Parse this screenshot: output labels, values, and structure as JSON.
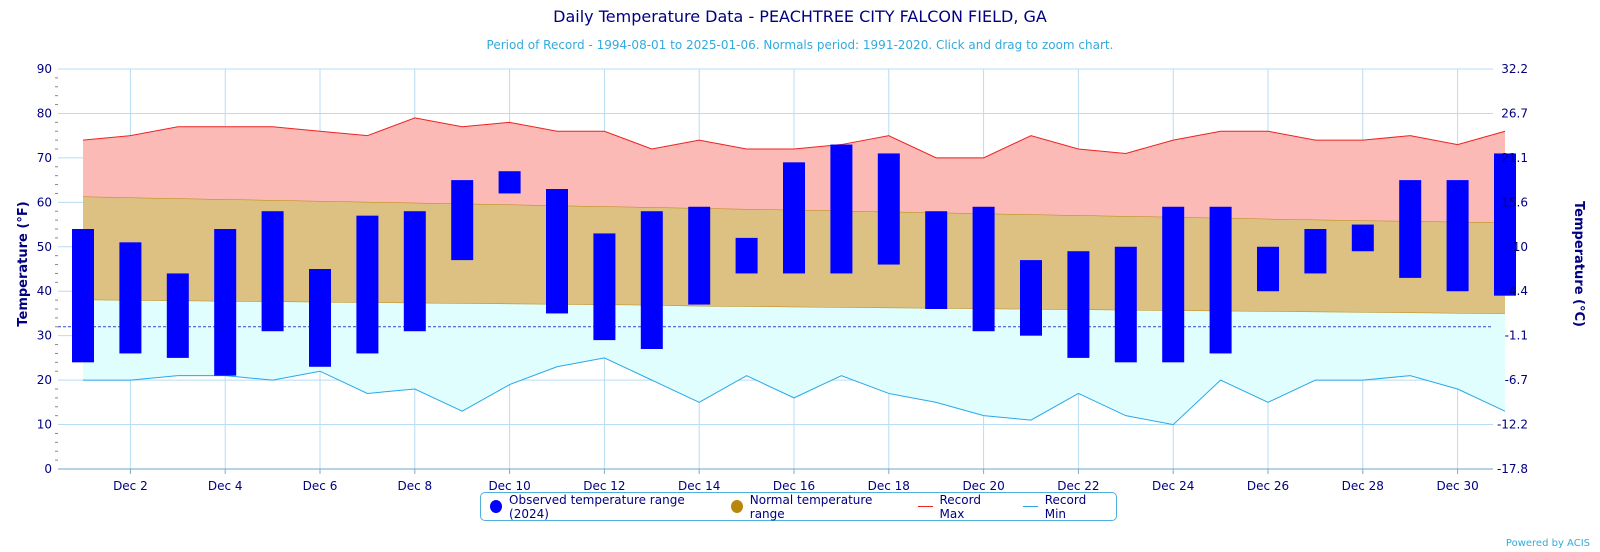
{
  "chart_data": {
    "type": "bar",
    "title": "Daily Temperature Data - PEACHTREE CITY FALCON FIELD, GA",
    "subtitle": "Period of Record - 1994-08-01 to 2025-01-06. Normals period: 1991-2020. Click and drag to zoom chart.",
    "ylabel_left": "Temperature (°F)",
    "ylabel_right": "Temperature (°C)",
    "ylim": [
      0,
      90
    ],
    "yticks_left": [
      "0",
      "10",
      "20",
      "30",
      "40",
      "50",
      "60",
      "70",
      "80",
      "90"
    ],
    "yticks_right": [
      "-17.8",
      "-12.2",
      "-6.7",
      "-1.1",
      "4.4",
      "10",
      "15.6",
      "21.1",
      "26.7",
      "32.2"
    ],
    "freezing_line": 32,
    "days": [
      1,
      2,
      3,
      4,
      5,
      6,
      7,
      8,
      9,
      10,
      11,
      12,
      13,
      14,
      15,
      16,
      17,
      18,
      19,
      20,
      21,
      22,
      23,
      24,
      25,
      26,
      27,
      28,
      29,
      30,
      31
    ],
    "xtick_labels": [
      "Dec 2",
      "Dec 4",
      "Dec 6",
      "Dec 8",
      "Dec 10",
      "Dec 12",
      "Dec 14",
      "Dec 16",
      "Dec 18",
      "Dec 20",
      "Dec 22",
      "Dec 24",
      "Dec 26",
      "Dec 28",
      "Dec 30"
    ],
    "xtick_days": [
      2,
      4,
      6,
      8,
      10,
      12,
      14,
      16,
      18,
      20,
      22,
      24,
      26,
      28,
      30
    ],
    "series": [
      {
        "name": "Observed temperature range (2024)",
        "color": "#0000ff",
        "low": [
          24,
          26,
          25,
          21,
          31,
          23,
          26,
          31,
          47,
          62,
          35,
          29,
          27,
          37,
          44,
          44,
          44,
          46,
          36,
          31,
          30,
          25,
          24,
          24,
          26,
          40,
          44,
          49,
          43,
          40,
          39
        ],
        "high": [
          54,
          51,
          44,
          54,
          58,
          45,
          57,
          58,
          65,
          67,
          63,
          53,
          58,
          59,
          52,
          69,
          73,
          71,
          58,
          59,
          47,
          49,
          50,
          59,
          59,
          50,
          54,
          55,
          65,
          65,
          71
        ]
      },
      {
        "name": "Normal temperature range",
        "color": "#b8860b",
        "low": [
          38.0,
          37.9,
          37.8,
          37.7,
          37.6,
          37.5,
          37.4,
          37.3,
          37.2,
          37.1,
          37.0,
          36.9,
          36.8,
          36.6,
          36.5,
          36.4,
          36.3,
          36.2,
          36.1,
          36.0,
          35.9,
          35.8,
          35.7,
          35.6,
          35.5,
          35.4,
          35.3,
          35.2,
          35.1,
          35.0,
          34.9
        ],
        "high": [
          61.3,
          61.1,
          60.9,
          60.7,
          60.5,
          60.3,
          60.1,
          59.9,
          59.7,
          59.5,
          59.3,
          59.1,
          58.9,
          58.7,
          58.5,
          58.3,
          58.1,
          57.9,
          57.7,
          57.5,
          57.3,
          57.1,
          56.9,
          56.7,
          56.5,
          56.3,
          56.1,
          55.9,
          55.8,
          55.6,
          55.5
        ]
      },
      {
        "name": "Record Max",
        "color": "#ee2222",
        "values": [
          74,
          75,
          77,
          77,
          77,
          76,
          75,
          79,
          77,
          78,
          76,
          76,
          72,
          74,
          72,
          72,
          73,
          75,
          70,
          70,
          75,
          72,
          71,
          74,
          76,
          76,
          74,
          74,
          75,
          73,
          76
        ]
      },
      {
        "name": "Record Min",
        "color": "#2aa8e8",
        "values": [
          20,
          20,
          21,
          21,
          20,
          22,
          17,
          18,
          13,
          19,
          23,
          25,
          20,
          15,
          21,
          16,
          21,
          17,
          15,
          12,
          11,
          17,
          12,
          10,
          20,
          15,
          20,
          20,
          21,
          18,
          13
        ]
      }
    ],
    "legend_position": "bottom-center",
    "grid": true
  },
  "credit": "Powered by ACIS"
}
